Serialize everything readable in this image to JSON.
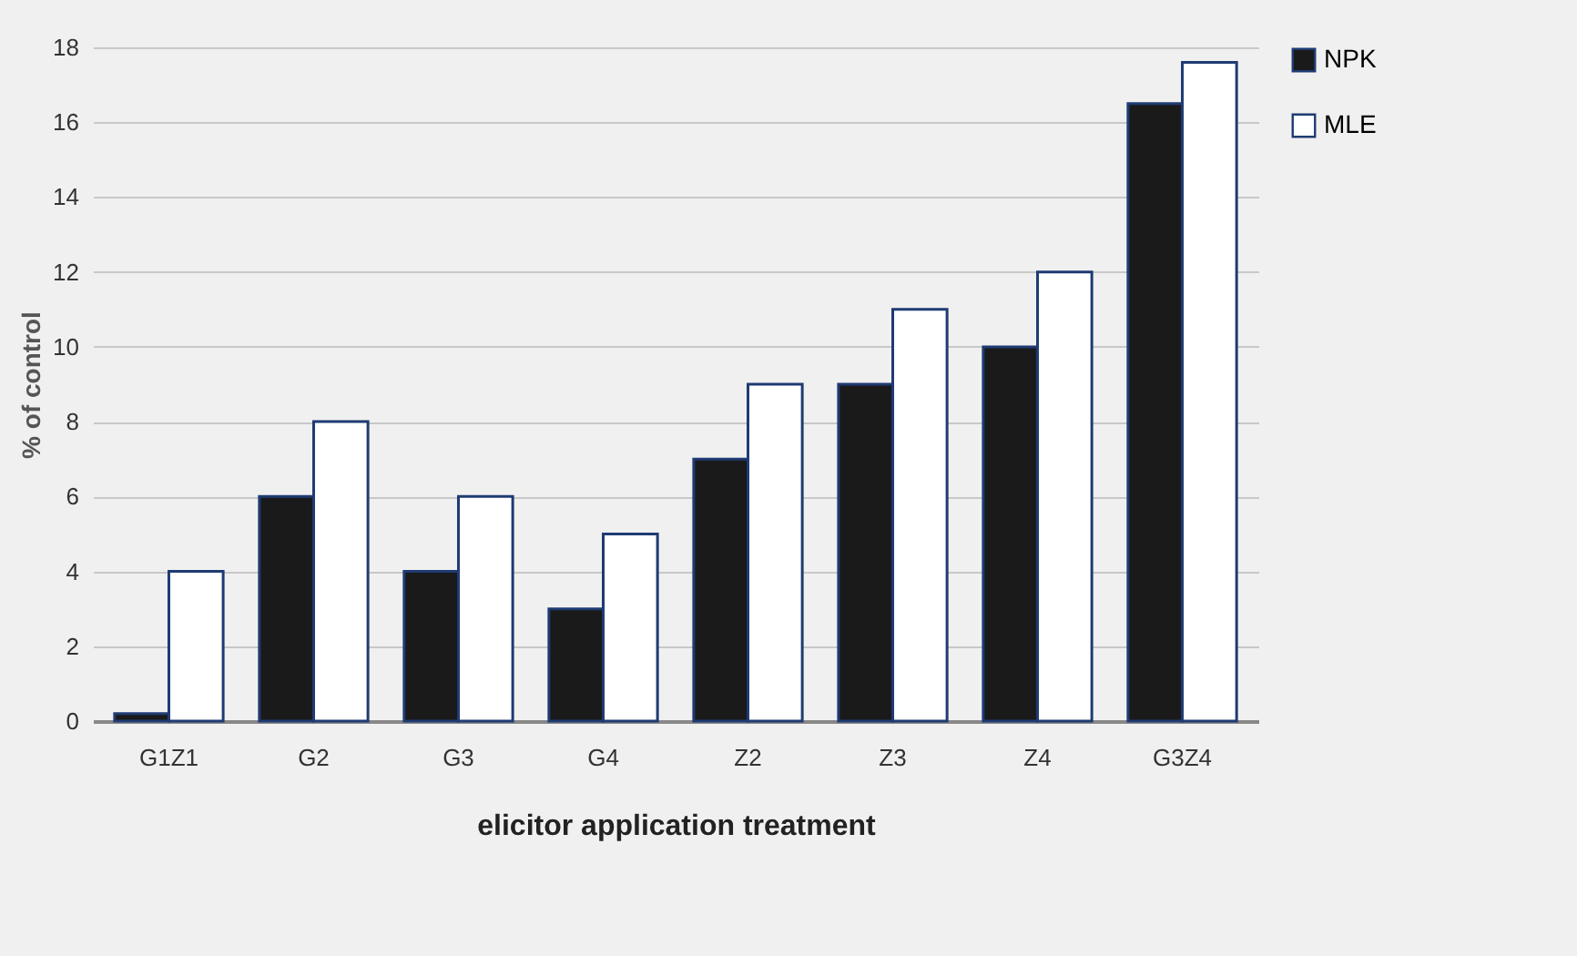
{
  "chart_data": {
    "type": "bar",
    "xlabel": "elicitor application treatment",
    "ylabel": "% of control",
    "categories": [
      "G1Z1",
      "G2",
      "G3",
      "G4",
      "Z2",
      "Z3",
      "Z4",
      "G3Z4"
    ],
    "series": [
      {
        "name": "NPK",
        "color": "#1a1a1a",
        "values": [
          0.2,
          6,
          4,
          3,
          7,
          9,
          10,
          16.5
        ]
      },
      {
        "name": "MLE",
        "color": "#ffffff",
        "values": [
          4,
          8,
          6,
          5,
          9,
          11,
          12,
          17.6
        ]
      }
    ],
    "ylim": [
      0,
      18
    ],
    "yticks": [
      0,
      2,
      4,
      6,
      8,
      10,
      12,
      14,
      16,
      18
    ],
    "grid": "y",
    "legend": "right"
  }
}
